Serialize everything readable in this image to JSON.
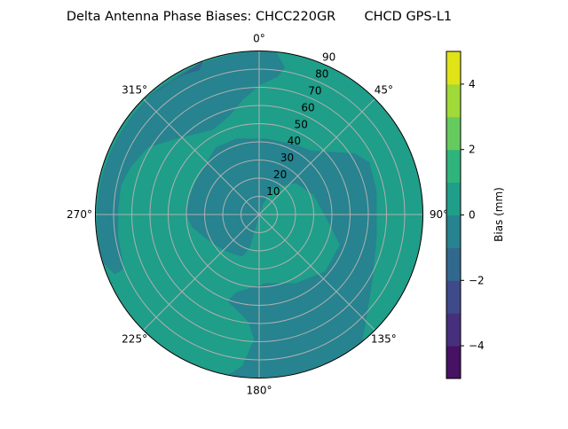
{
  "chart_data": {
    "type": "polar-contour",
    "title": "Delta Antenna Phase Biases: CHCC220GR       CHCD GPS-L1",
    "angle_direction": "clockwise",
    "angle_zero": "top",
    "angle_ticks": [
      "0°",
      "45°",
      "90°",
      "135°",
      "180°",
      "225°",
      "270°",
      "315°"
    ],
    "angle_tick_values": [
      0,
      45,
      90,
      135,
      180,
      225,
      270,
      315
    ],
    "radial_ticks": [
      "10",
      "20",
      "30",
      "40",
      "50",
      "60",
      "70",
      "80",
      "90"
    ],
    "radial_tick_values": [
      10,
      20,
      30,
      40,
      50,
      60,
      70,
      80,
      90
    ],
    "rlim": [
      0,
      90
    ],
    "grid": true,
    "colorbar": {
      "label": "Bias (mm)",
      "levels": [
        -5,
        -4,
        -3,
        -2,
        -1,
        0,
        1,
        2,
        3,
        4,
        5
      ],
      "ticks": [
        4,
        2,
        0,
        -2,
        -4
      ],
      "tick_labels": [
        "4",
        "2",
        "0",
        "−2",
        "−4"
      ],
      "colors": [
        "#471164",
        "#472f7d",
        "#3e4a89",
        "#31688e",
        "#26838f",
        "#1f9e89",
        "#2fb47c",
        "#65cb5e",
        "#a0da39",
        "#dfe318"
      ]
    },
    "background_level": [
      0,
      1
    ],
    "regions": [
      {
        "level": [
          -1,
          0
        ],
        "points": [
          [
            270,
            40.1
          ],
          [
            259.3,
            37.5
          ],
          [
            244.9,
            31.8
          ],
          [
            223.6,
            27.6
          ],
          [
            201.7,
            25.0
          ],
          [
            195.8,
            19.1
          ],
          [
            195.1,
            10.6
          ],
          [
            189,
            2.1
          ],
          [
            19.4,
            6.4
          ],
          [
            26.3,
            15.8
          ],
          [
            49.0,
            26.5
          ],
          [
            69.9,
            31.7
          ],
          [
            95.6,
            38.0
          ],
          [
            110.7,
            47.4
          ],
          [
            130.9,
            47.9
          ],
          [
            152.2,
            42.8
          ],
          [
            174.4,
            38.0
          ],
          [
            196.3,
            44.5
          ],
          [
            200.1,
            50.7
          ],
          [
            193.4,
            53.9
          ],
          [
            185.8,
            59.3
          ],
          [
            182.3,
            68.8
          ],
          [
            186.3,
            83.8
          ],
          [
            191.0,
            90
          ],
          [
            141.0,
            90
          ],
          [
            131.3,
            79.5
          ],
          [
            120.2,
            72.0
          ],
          [
            100.4,
            65.7
          ],
          [
            79.1,
            65.8
          ],
          [
            64.6,
            67.1
          ],
          [
            57.3,
            62.3
          ],
          [
            48.9,
            52.4
          ],
          [
            38.6,
            45.1
          ],
          [
            27.4,
            43.4
          ],
          [
            5.1,
            41.9
          ],
          [
            343.3,
            43.6
          ],
          [
            327.1,
            43.9
          ],
          [
            315,
            40.7
          ],
          [
            296.2,
            39.3
          ],
          [
            283.5,
            39.6
          ]
        ]
      },
      {
        "level": [
          -1,
          0
        ],
        "points": [
          [
            252.8,
            90
          ],
          [
            6.0,
            90
          ],
          [
            10.0,
            82.0
          ],
          [
            7.7,
            76.5
          ],
          [
            0,
            71.0
          ],
          [
            351.6,
            63.5
          ],
          [
            343.9,
            57.0
          ],
          [
            331.3,
            53.1
          ],
          [
            312.9,
            61.4
          ],
          [
            301.0,
            71.5
          ],
          [
            289.8,
            75.4
          ],
          [
            281.7,
            77.5
          ],
          [
            272.0,
            77.5
          ],
          [
            261.3,
            78.4
          ],
          [
            248.2,
            80.0
          ],
          [
            247.4,
            85.7
          ]
        ]
      },
      {
        "level": [
          -2,
          -1
        ],
        "points": [
          [
            313.5,
            90
          ],
          [
            322,
            88.5
          ],
          [
            331.4,
            87.3
          ],
          [
            337.6,
            86
          ],
          [
            340,
            90
          ]
        ]
      }
    ]
  }
}
